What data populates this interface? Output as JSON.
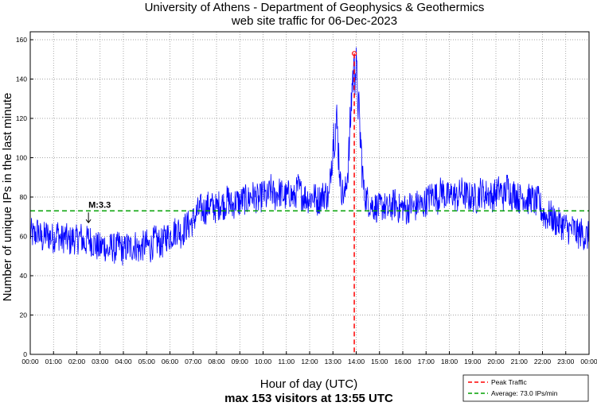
{
  "chart_data": {
    "type": "line",
    "title": "University of Athens - Department of Geophysics & Geothermics",
    "subtitle": "web site traffic for 06-Dec-2023",
    "xlabel": "Hour of day (UTC)",
    "xlabel2": "max 153 visitors at 13:55 UTC",
    "ylabel": "Number of unique IPs in the last minute",
    "xlim": [
      0,
      24
    ],
    "ylim": [
      0,
      160
    ],
    "yticks": [
      0,
      20,
      40,
      60,
      80,
      100,
      120,
      140,
      160
    ],
    "xticks": [
      "00:00",
      "01:00",
      "02:00",
      "03:00",
      "04:00",
      "05:00",
      "06:00",
      "07:00",
      "08:00",
      "09:00",
      "10:00",
      "11:00",
      "12:00",
      "13:00",
      "14:00",
      "15:00",
      "16:00",
      "17:00",
      "18:00",
      "19:00",
      "20:00",
      "21:00",
      "22:00",
      "23:00",
      "00:00"
    ],
    "grid": true,
    "series_step_minutes": 10,
    "series": [
      {
        "name": "Traffic",
        "color": "#0000ff",
        "values": [
          62,
          60,
          63,
          58,
          61,
          60,
          59,
          62,
          58,
          60,
          57,
          59,
          58,
          60,
          56,
          59,
          57,
          55,
          54,
          56,
          52,
          55,
          53,
          56,
          52,
          55,
          54,
          56,
          53,
          55,
          56,
          54,
          58,
          57,
          56,
          60,
          60,
          62,
          64,
          61,
          65,
          66,
          68,
          72,
          74,
          73,
          76,
          75,
          74,
          77,
          76,
          79,
          75,
          78,
          77,
          79,
          78,
          81,
          80,
          78,
          82,
          79,
          84,
          80,
          83,
          81,
          80,
          82,
          79,
          85,
          81,
          80,
          79,
          81,
          78,
          80,
          82,
          79,
          110,
          118,
          85,
          80,
          96,
          140,
          145,
          112,
          82,
          78,
          76,
          75,
          74,
          76,
          73,
          75,
          77,
          74,
          75,
          73,
          76,
          74,
          77,
          75,
          78,
          80,
          82,
          79,
          84,
          80,
          80,
          82,
          79,
          83,
          81,
          80,
          80,
          79,
          83,
          81,
          82,
          80,
          82,
          84,
          80,
          86,
          81,
          82,
          79,
          81,
          78,
          80,
          77,
          78,
          72,
          70,
          71,
          68,
          67,
          66,
          65,
          63,
          64,
          61,
          62,
          60,
          60
        ]
      }
    ],
    "peak": {
      "label": "Peak Traffic",
      "hour": 13.9167,
      "value": 153,
      "color": "#ff0000"
    },
    "average": {
      "label": "Average: 73.0 IPs/min",
      "value": 73.0,
      "color": "#00a000"
    },
    "annotation": {
      "text": "M:3.3",
      "hour": 2.5
    },
    "legend": "bottom-right"
  }
}
